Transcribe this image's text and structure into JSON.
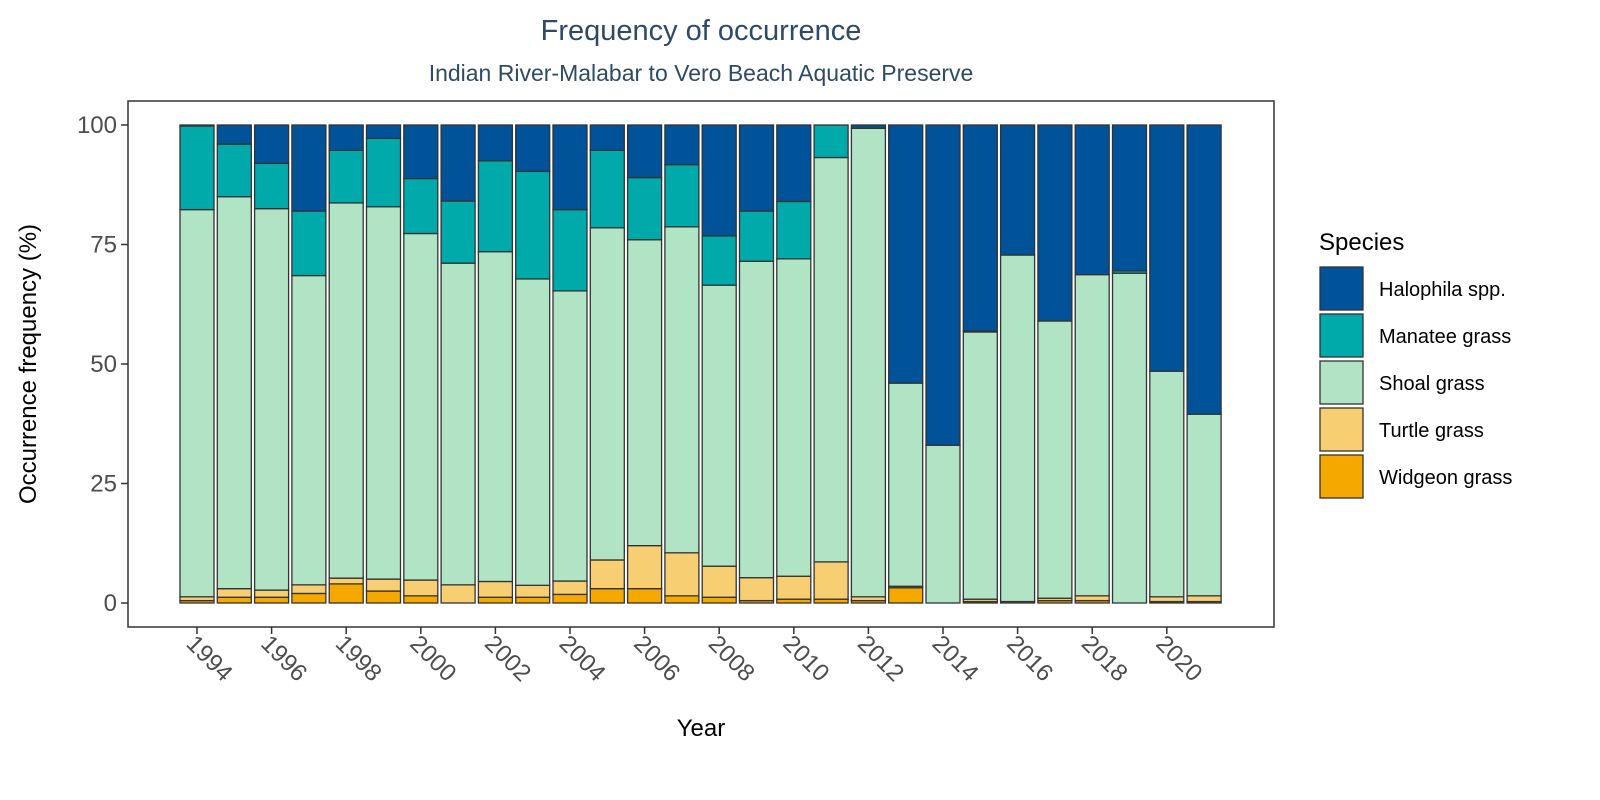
{
  "chart_data": {
    "type": "bar",
    "stacked": true,
    "title": "Frequency of occurrence",
    "subtitle": "Indian River-Malabar to Vero Beach Aquatic Preserve",
    "xlabel": "Year",
    "ylabel": "Occurrence frequency (%)",
    "ylim": [
      0,
      100
    ],
    "yticks": [
      0,
      25,
      50,
      75,
      100
    ],
    "xtick_labels": [
      1994,
      1996,
      1998,
      2000,
      2002,
      2004,
      2006,
      2008,
      2010,
      2012,
      2014,
      2016,
      2018,
      2020
    ],
    "grid": false,
    "legend": {
      "title": "Species",
      "position": "right"
    },
    "categories": [
      1994,
      1995,
      1996,
      1997,
      1998,
      1999,
      2000,
      2001,
      2002,
      2003,
      2004,
      2005,
      2006,
      2007,
      2008,
      2009,
      2010,
      2011,
      2012,
      2013,
      2014,
      2015,
      2016,
      2017,
      2018,
      2019,
      2020,
      2021
    ],
    "series": [
      {
        "name": "Widgeon grass",
        "color": "#f5a800",
        "values": [
          0.5,
          1.2,
          1.2,
          2.0,
          4.0,
          2.5,
          1.5,
          0,
          1.2,
          1.2,
          1.8,
          3.0,
          3.0,
          1.5,
          1.2,
          0.5,
          0.8,
          0.8,
          0.5,
          3.2,
          0,
          0.3,
          0,
          0.5,
          0.5,
          0,
          0.3,
          0.3
        ]
      },
      {
        "name": "Turtle grass",
        "color": "#f7ce71",
        "values": [
          0.8,
          1.8,
          1.5,
          1.8,
          1.2,
          2.5,
          3.3,
          3.8,
          3.3,
          2.5,
          2.8,
          6.0,
          9.0,
          9.0,
          6.5,
          4.8,
          4.8,
          7.8,
          0.8,
          0.3,
          0,
          0.5,
          0.3,
          0.5,
          1.0,
          0,
          1.0,
          1.2
        ]
      },
      {
        "name": "Shoal grass",
        "color": "#b0e4c4",
        "values": [
          81.0,
          82.0,
          79.8,
          64.7,
          78.5,
          77.9,
          72.5,
          67.3,
          69.0,
          64.1,
          60.7,
          69.5,
          64.0,
          68.2,
          58.8,
          66.2,
          66.4,
          84.6,
          98.0,
          42.5,
          33.0,
          55.9,
          72.5,
          58.0,
          67.2,
          69.0,
          47.2,
          38.0
        ]
      },
      {
        "name": "Manatee grass",
        "color": "#00aaab",
        "values": [
          17.5,
          11.0,
          9.5,
          13.5,
          11.0,
          14.3,
          11.5,
          13.0,
          19.0,
          22.5,
          17.0,
          16.2,
          13.0,
          13.0,
          10.3,
          10.5,
          12.0,
          6.8,
          0,
          0,
          0,
          0.2,
          0,
          0,
          0,
          0.5,
          0,
          0
        ]
      },
      {
        "name": "Halophila spp.",
        "color": "#005398",
        "values": [
          0.2,
          4.0,
          8.0,
          18.0,
          5.3,
          2.8,
          11.2,
          15.9,
          7.5,
          9.7,
          17.7,
          5.3,
          11.0,
          8.3,
          23.2,
          18.0,
          16.0,
          0,
          0.7,
          54.0,
          67.0,
          43.1,
          27.2,
          41.0,
          31.3,
          30.5,
          51.5,
          60.5
        ]
      }
    ]
  }
}
